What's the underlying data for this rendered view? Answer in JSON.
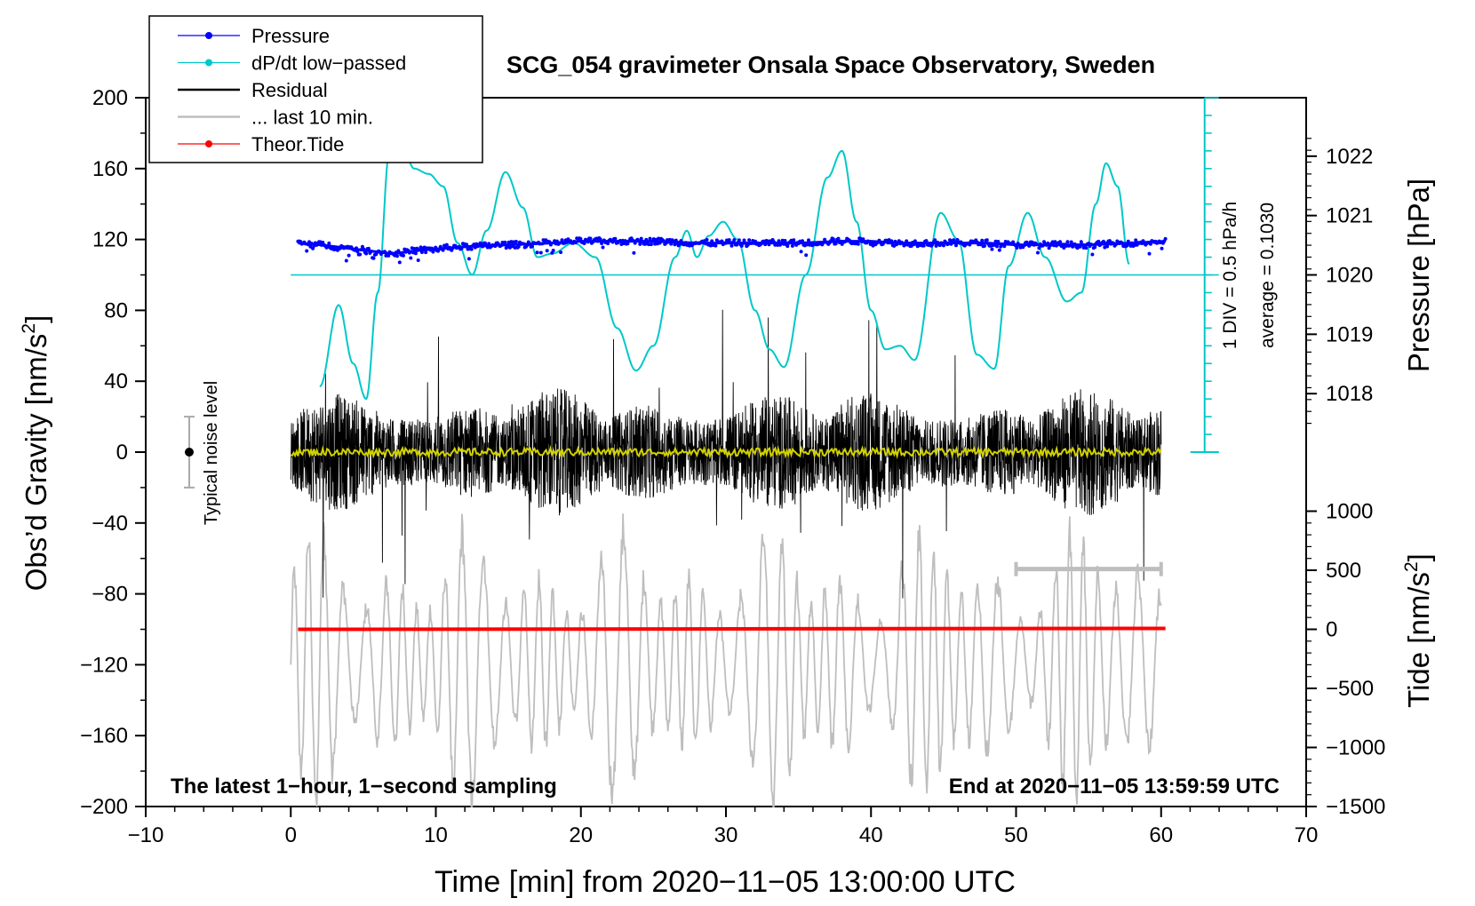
{
  "chart_data": {
    "type": "line",
    "title": "SCG_054 gravimeter Onsala Space Observatory, Sweden",
    "xlabel": "Time [min] from 2020−11−05 13:00:00 UTC",
    "ylabel_left_main": "Obs’d Gravity [nm/s",
    "ylabel_left_sup": "2",
    "ylabel_left_close": "]",
    "ylabel_right_pressure": "Pressure [hPa]",
    "ylabel_right_tide_main": "Tide [nm/s",
    "ylabel_right_tide_sup": "2",
    "ylabel_right_tide_close": "]",
    "xlim": [
      -10,
      70
    ],
    "ylim": [
      -200,
      200
    ],
    "x_ticks": [
      "−10",
      "0",
      "10",
      "20",
      "30",
      "40",
      "50",
      "60",
      "70"
    ],
    "x_tick_values": [
      -10,
      0,
      10,
      20,
      30,
      40,
      50,
      60,
      70
    ],
    "y_ticks": [
      "200",
      "160",
      "120",
      "80",
      "40",
      "0",
      "−40",
      "−80",
      "−120",
      "−160",
      "−200"
    ],
    "y_tick_values": [
      200,
      160,
      120,
      80,
      40,
      0,
      -40,
      -80,
      -120,
      -160,
      -200
    ],
    "pressure_axis": {
      "ticks": [
        "1022",
        "1021",
        "1020",
        "1019",
        "1018"
      ],
      "tick_values": [
        1022,
        1021,
        1020,
        1019,
        1018
      ],
      "ref_hpa": 1020,
      "ref_gravity": 100,
      "hpa_per_gravity_unit": 0.02985
    },
    "tide_axis": {
      "ticks": [
        "1000",
        "500",
        "0",
        "−500",
        "−1000",
        "−1500"
      ],
      "tick_values": [
        1000,
        500,
        0,
        -500,
        -1000,
        -1500
      ],
      "ref_tide": 0,
      "ref_gravity": -100,
      "tide_per_gravity_unit": 15
    },
    "dpdt_scale": {
      "label_div": "1 DIV = 0.5 hPa/h",
      "label_avg": "average = 0.1030",
      "x": 63,
      "y_top": 200,
      "y_bottom": 0,
      "y_baseline": 100,
      "divisions": 20
    },
    "noise_level": {
      "label": "Typical noise level",
      "x": -7,
      "y": 0,
      "low": -20,
      "high": 20
    },
    "last10_bar": {
      "x_start": 50,
      "x_end": 60,
      "y": -66
    },
    "annotation_left": "The latest 1−hour, 1−second sampling",
    "annotation_right": "End at 2020−11−05 13:59:59 UTC",
    "legend": [
      {
        "label": "Pressure",
        "color": "#0000ff",
        "marker": true
      },
      {
        "label": "dP/dt low−passed",
        "color": "#00c8c8",
        "marker": true
      },
      {
        "label": "Residual",
        "color": "#000000",
        "marker": false
      },
      {
        "label": "... last 10 min.",
        "color": "#bebebe",
        "marker": false
      },
      {
        "label": "Theor.Tide",
        "color": "#ff0000",
        "marker": true
      }
    ],
    "series": [
      {
        "name": "Pressure",
        "color": "#0000ff",
        "unit": "gravity-axis",
        "x": [
          0.5,
          2,
          4,
          6,
          7,
          9,
          12,
          15,
          18,
          20,
          22,
          25,
          28,
          30,
          32,
          35,
          38,
          40,
          42,
          45,
          48,
          50,
          52,
          55,
          58,
          60.3
        ],
        "y": [
          118,
          117,
          115,
          113,
          112,
          114,
          116,
          117,
          118,
          119,
          119,
          119,
          118,
          118,
          118,
          118,
          119,
          119,
          118,
          118,
          118,
          117,
          117,
          117,
          118,
          119
        ]
      },
      {
        "name": "dP/dt low−passed",
        "color": "#00c8c8",
        "unit": "gravity-axis",
        "x": [
          2,
          3.3,
          4.3,
          5.2,
          6,
          6.8,
          7.3,
          7.8,
          8.5,
          9.5,
          10.5,
          11.5,
          12.5,
          13.5,
          14.8,
          16,
          17,
          18,
          19.5,
          21,
          22.5,
          23.8,
          25,
          26.5,
          27.3,
          28,
          28.8,
          29.8,
          30.8,
          32,
          33,
          34,
          35.5,
          37,
          38,
          39,
          40,
          41,
          42,
          43,
          44.8,
          46,
          47.3,
          48.5,
          49.5,
          50.8,
          52,
          53.5,
          54.5,
          55.5,
          56.2,
          57,
          57.8
        ],
        "y": [
          37,
          83,
          50,
          30,
          90,
          170,
          185,
          170,
          160,
          157,
          150,
          118,
          100,
          125,
          158,
          138,
          110,
          112,
          118,
          110,
          70,
          46,
          60,
          110,
          125,
          110,
          122,
          130,
          120,
          80,
          58,
          48,
          100,
          155,
          170,
          130,
          80,
          58,
          60,
          52,
          135,
          120,
          55,
          47,
          105,
          135,
          110,
          85,
          90,
          140,
          163,
          150,
          106
        ]
      },
      {
        "name": "Residual",
        "color": "#000000",
        "unit": "gravity-axis",
        "x_range": [
          0,
          60
        ],
        "typical_amplitude": 30,
        "max_amplitude": 85
      },
      {
        "name": "Residual smoothed",
        "color": "#d2d200",
        "unit": "gravity-axis",
        "x_range": [
          0,
          60
        ],
        "y": 0
      },
      {
        "name": "... last 10 min.",
        "color": "#bebebe",
        "unit": "gravity-axis",
        "x_range": [
          0,
          60
        ],
        "center": -120,
        "amplitude_range": [
          20,
          90
        ]
      },
      {
        "name": "Theor.Tide",
        "color": "#ff0000",
        "unit": "gravity-axis",
        "x": [
          0.5,
          60.3
        ],
        "y": [
          -100,
          -99.5
        ]
      }
    ]
  }
}
